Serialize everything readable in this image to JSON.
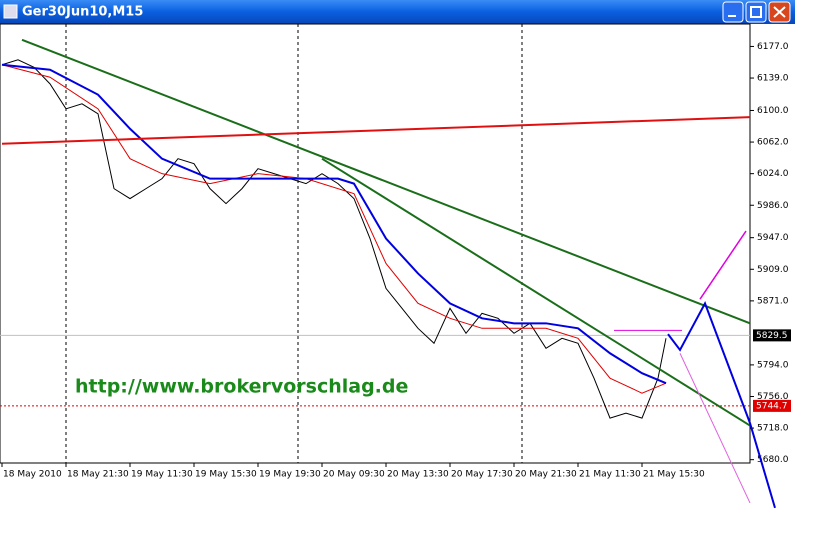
{
  "window": {
    "title": "Ger30Jun10,M15"
  },
  "chart_data": {
    "type": "line",
    "watermark": "http://www.brokervorschlag.de",
    "xlim": [
      -0.5,
      187
    ],
    "ylim": [
      5676,
      6204
    ],
    "xticks": [
      {
        "value": 0,
        "label": "18 May 2010"
      },
      {
        "value": 16,
        "label": "18 May 21:30"
      },
      {
        "value": 32,
        "label": "19 May 11:30"
      },
      {
        "value": 48,
        "label": "19 May 15:30"
      },
      {
        "value": 64,
        "label": "19 May 19:30"
      },
      {
        "value": 80,
        "label": "20 May 09:30"
      },
      {
        "value": 96,
        "label": "20 May 13:30"
      },
      {
        "value": 112,
        "label": "20 May 17:30"
      },
      {
        "value": 128,
        "label": "20 May 21:30"
      },
      {
        "value": 144,
        "label": "21 May 11:30"
      },
      {
        "value": 160,
        "label": "21 May 15:30"
      }
    ],
    "yticks": [
      {
        "value": 6177,
        "label": "6177.0"
      },
      {
        "value": 6139,
        "label": "6139.0"
      },
      {
        "value": 6100,
        "label": "6100.0"
      },
      {
        "value": 6062,
        "label": "6062.0"
      },
      {
        "value": 6024,
        "label": "6024.0"
      },
      {
        "value": 5986,
        "label": "5986.0"
      },
      {
        "value": 5947,
        "label": "5947.0"
      },
      {
        "value": 5909,
        "label": "5909.0"
      },
      {
        "value": 5871,
        "label": "5871.0"
      },
      {
        "value": 5794,
        "label": "5794.0"
      },
      {
        "value": 5756,
        "label": "5756.0"
      },
      {
        "value": 5718,
        "label": "5718.0"
      },
      {
        "value": 5680,
        "label": "5680.0"
      }
    ],
    "day_separators": [
      16,
      74,
      130
    ],
    "price_lines": [
      {
        "value": 5829.5,
        "color": "#000000",
        "line": "#c0c0c0"
      },
      {
        "value": 5744.7,
        "color": "#e00000",
        "line": "#e00000"
      }
    ],
    "series": [
      {
        "color": "#000000",
        "width": 1,
        "x": [
          0,
          4,
          8,
          12,
          16,
          20,
          24,
          28,
          32,
          36,
          40,
          44,
          48,
          52,
          56,
          60,
          64,
          68,
          72,
          76,
          80,
          84,
          88,
          92,
          96,
          100,
          104,
          108,
          112,
          116,
          120,
          124,
          128,
          132,
          136,
          140,
          144,
          148,
          152,
          156,
          160,
          164,
          166
        ],
        "values": [
          6155,
          6161,
          6152,
          6132,
          6102,
          6108,
          6096,
          6006,
          5994,
          6006,
          6018,
          6042,
          6036,
          6006,
          5988,
          6006,
          6030,
          6024,
          6018,
          6012,
          6024,
          6012,
          5994,
          5946,
          5886,
          5862,
          5838,
          5820,
          5862,
          5832,
          5856,
          5850,
          5832,
          5844,
          5814,
          5826,
          5820,
          5778,
          5730,
          5736,
          5730,
          5778,
          5826
        ]
      },
      {
        "color": "#e00000",
        "width": 1,
        "x": [
          0,
          12,
          24,
          32,
          40,
          52,
          64,
          76,
          88,
          96,
          104,
          112,
          120,
          128,
          136,
          144,
          152,
          160,
          166
        ],
        "values": [
          6155,
          6140,
          6102,
          6042,
          6024,
          6012,
          6024,
          6018,
          6000,
          5916,
          5868,
          5850,
          5838,
          5838,
          5838,
          5826,
          5778,
          5760,
          5772
        ]
      },
      {
        "color": "#0000e0",
        "width": 2,
        "x": [
          0,
          12,
          24,
          32,
          40,
          52,
          64,
          76,
          84,
          88,
          96,
          104,
          112,
          120,
          128,
          136,
          144,
          152,
          160,
          166
        ],
        "values": [
          6155,
          6149,
          6119,
          6078,
          6042,
          6018,
          6018,
          6018,
          6018,
          6012,
          5946,
          5904,
          5868,
          5850,
          5844,
          5844,
          5838,
          5808,
          5784,
          5772
        ]
      },
      {
        "color": "#1a6e1a",
        "width": 2,
        "x": [
          5,
          187
        ],
        "values": [
          6185,
          5844
        ]
      },
      {
        "color": "#1a6e1a",
        "width": 2,
        "x": [
          80,
          187
        ],
        "values": [
          6042,
          5721
        ]
      },
      {
        "color": "#e01010",
        "width": 2,
        "x": [
          0,
          187
        ],
        "values": [
          6060,
          6092
        ]
      },
      {
        "color": "#0000e0",
        "width": 2,
        "x": [
          166.5,
          169.5,
          175.75,
          187,
          193.25
        ],
        "values": [
          5831,
          5812,
          5868,
          5724,
          5622
        ]
      },
      {
        "color": "#e000e0",
        "width": 1.5,
        "x": [
          174.5,
          186
        ],
        "values": [
          5873,
          5955
        ]
      },
      {
        "color": "#e060e0",
        "width": 1,
        "x": [
          169.5,
          187
        ],
        "values": [
          5808,
          5628
        ]
      },
      {
        "color": "#e000e0",
        "width": 1,
        "x": [
          153,
          170
        ],
        "values": [
          5835.5,
          5835.5
        ]
      }
    ]
  }
}
